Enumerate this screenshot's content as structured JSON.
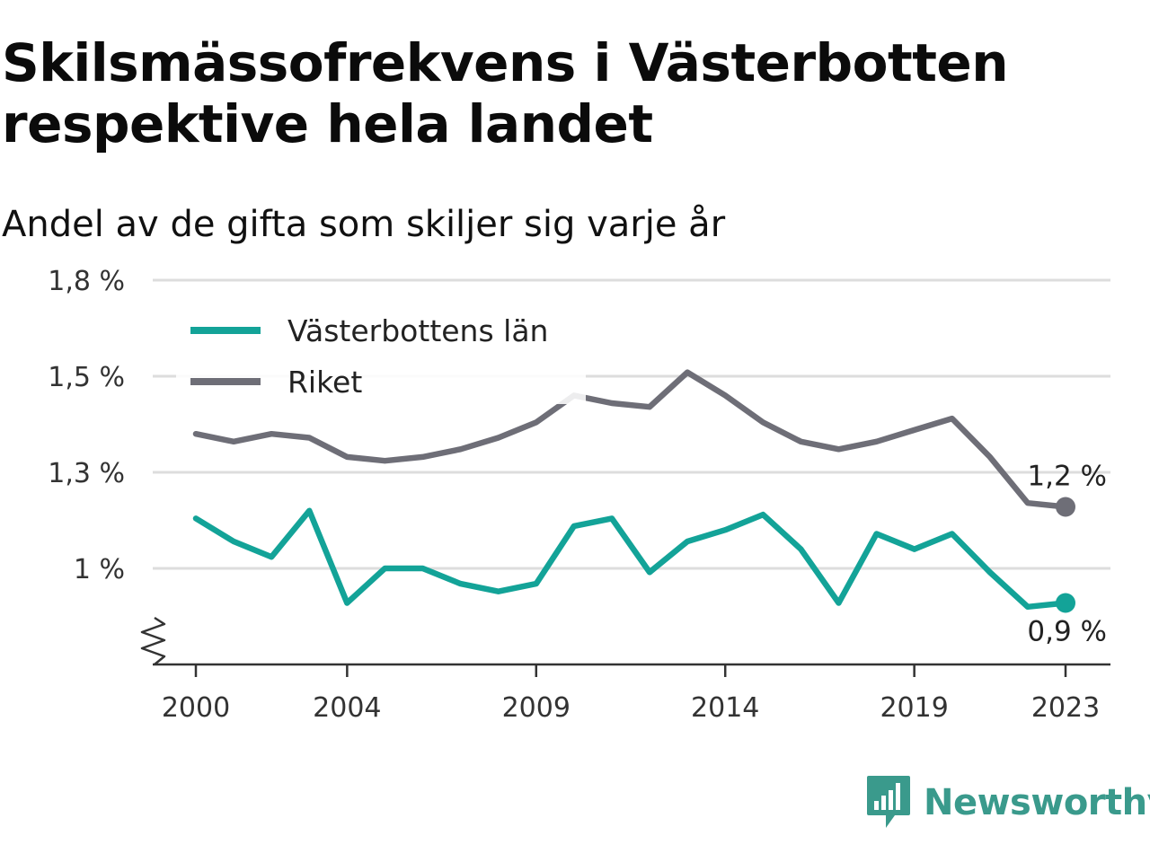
{
  "title": "Skilsmässofrekvens i Västerbotten respektive hela landet",
  "subtitle": "Andel av de gifta som skiljer sig varje år",
  "logo_text": "Newsworthy",
  "colors": {
    "vasterbotten": "#13a398",
    "riket": "#6e6e77",
    "grid": "#dddddd",
    "axis": "#333333",
    "logo": "#3a9a8c"
  },
  "chart_data": {
    "type": "line",
    "title": "Skilsmässofrekvens i Västerbotten respektive hela landet",
    "subtitle": "Andel av de gifta som skiljer sig varje år",
    "xlabel": "",
    "ylabel": "",
    "xlim": [
      2000,
      2023
    ],
    "ylim": [
      0.75,
      1.8
    ],
    "y_axis_break": true,
    "grid": "horizontal",
    "legend_position": "top-left",
    "x_ticks": [
      {
        "value": 2000,
        "label": "2000"
      },
      {
        "value": 2004,
        "label": "2004"
      },
      {
        "value": 2009,
        "label": "2009"
      },
      {
        "value": 2014,
        "label": "2014"
      },
      {
        "value": 2019,
        "label": "2019"
      },
      {
        "value": 2023,
        "label": "2023"
      }
    ],
    "y_ticks": [
      {
        "value": 1.0,
        "label": "1 %"
      },
      {
        "value": 1.25,
        "label": "1,3 %"
      },
      {
        "value": 1.5,
        "label": "1,5 %"
      },
      {
        "value": 1.75,
        "label": "1,8 %"
      }
    ],
    "x": [
      2000,
      2001,
      2002,
      2003,
      2004,
      2005,
      2006,
      2007,
      2008,
      2009,
      2010,
      2011,
      2012,
      2013,
      2014,
      2015,
      2016,
      2017,
      2018,
      2019,
      2020,
      2021,
      2022,
      2023
    ],
    "series": [
      {
        "key": "vasterbotten",
        "name": "Västerbottens län",
        "values": [
          1.13,
          1.07,
          1.03,
          1.15,
          0.91,
          1.0,
          1.0,
          0.96,
          0.94,
          0.96,
          1.11,
          1.13,
          0.99,
          1.07,
          1.1,
          1.14,
          1.05,
          0.91,
          1.09,
          1.05,
          1.09,
          0.99,
          0.9,
          0.91
        ],
        "end_label": "0,9 %"
      },
      {
        "key": "riket",
        "name": "Riket",
        "values": [
          1.35,
          1.33,
          1.35,
          1.34,
          1.29,
          1.28,
          1.29,
          1.31,
          1.34,
          1.38,
          1.45,
          1.43,
          1.42,
          1.51,
          1.45,
          1.38,
          1.33,
          1.31,
          1.33,
          1.36,
          1.39,
          1.29,
          1.17,
          1.16
        ],
        "end_label": "1,2 %"
      }
    ]
  }
}
